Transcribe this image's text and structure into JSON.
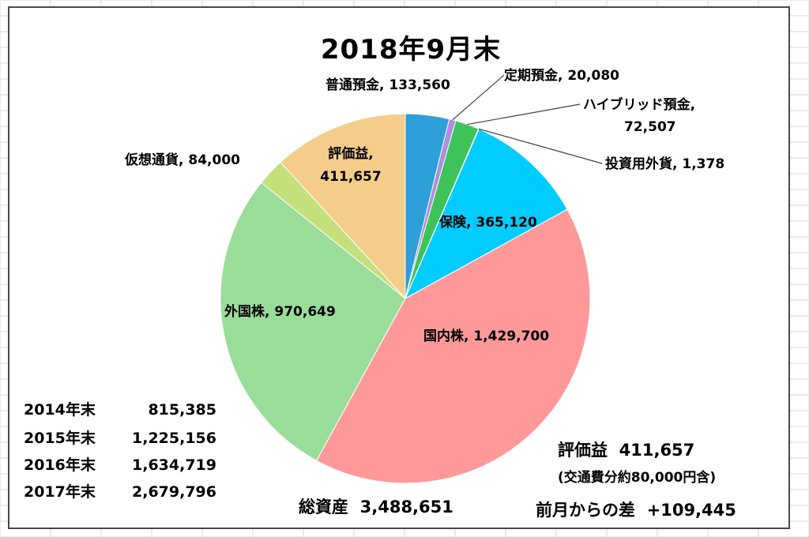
{
  "chart_data": {
    "type": "pie",
    "title": "2018年9月末",
    "slices": [
      {
        "label": "普通預金",
        "value": 133560,
        "value_text": "133,560",
        "color": "#2e9fd9"
      },
      {
        "label": "定期預金",
        "value": 20080,
        "value_text": "20,080",
        "color": "#b08ce0"
      },
      {
        "label": "ハイブリッド預金",
        "value": 72507,
        "value_text": "72,507",
        "color": "#3ec25a"
      },
      {
        "label": "投資用外貨",
        "value": 1378,
        "value_text": "1,378",
        "color": "#2f7a3c"
      },
      {
        "label": "保険",
        "value": 365120,
        "value_text": "365,120",
        "color": "#00ccff"
      },
      {
        "label": "国内株",
        "value": 1429700,
        "value_text": "1,429,700",
        "color": "#ff9999"
      },
      {
        "label": "外国株",
        "value": 970649,
        "value_text": "970,649",
        "color": "#99dd99"
      },
      {
        "label": "仮想通貨",
        "value": 84000,
        "value_text": "84,000",
        "color": "#c4e07a"
      },
      {
        "label": "評価益",
        "value": 411657,
        "value_text": "411,657",
        "color": "#f5cd8a"
      }
    ]
  },
  "yearly": [
    {
      "year": "2014年末",
      "value": "815,385"
    },
    {
      "year": "2015年末",
      "value": "1,225,156"
    },
    {
      "year": "2016年末",
      "value": "1,634,719"
    },
    {
      "year": "2017年末",
      "value": "2,679,796"
    }
  ],
  "notes": {
    "total_label": "総資産",
    "total_value": "3,488,651",
    "gain_label": "評価益",
    "gain_value": "411,657",
    "gain_note": "(交通費分約80,000円含)",
    "diff_label": "前月からの差",
    "diff_value": "+109,445"
  }
}
